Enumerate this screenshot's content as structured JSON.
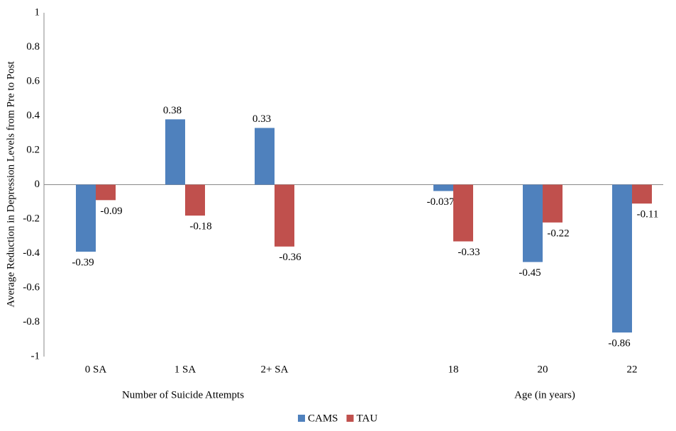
{
  "chart_data": {
    "type": "bar",
    "y_label": "Average Reduction in Depression Levels from Pre to Post",
    "categories": [
      "0 SA",
      "1 SA",
      "2+  SA",
      null,
      "18",
      "20",
      "22"
    ],
    "group_labels": [
      "Number of Suicide Attempts",
      "Age (in years)"
    ],
    "series": [
      {
        "name": "CAMS",
        "color": "#4f81bd",
        "values": [
          -0.39,
          0.38,
          0.33,
          null,
          -0.037,
          -0.45,
          -0.86
        ]
      },
      {
        "name": "TAU",
        "color": "#c0504d",
        "values": [
          -0.09,
          -0.18,
          -0.36,
          null,
          -0.33,
          -0.22,
          -0.11
        ]
      }
    ],
    "ylim": [
      -1,
      1
    ],
    "yticks": [
      -1,
      -0.8,
      -0.6,
      -0.4,
      -0.2,
      0,
      0.2,
      0.4,
      0.6,
      0.8,
      1
    ],
    "legend": "bottom"
  }
}
